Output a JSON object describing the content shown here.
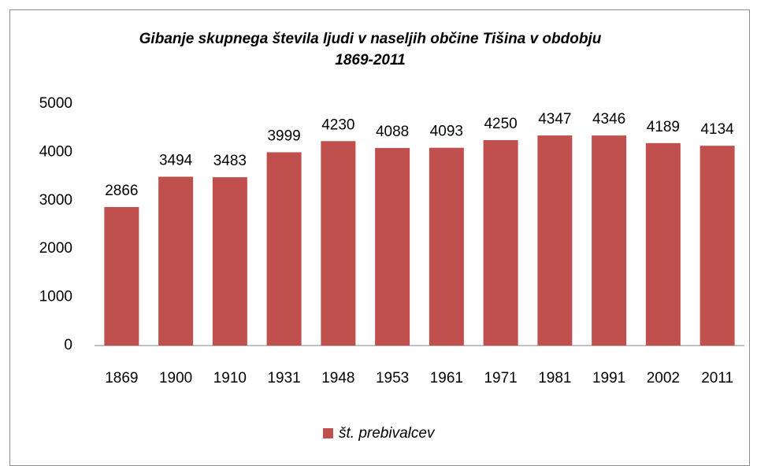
{
  "chart_data": {
    "type": "bar",
    "title": "Gibanje skupnega števila ljudi v naseljih občine Tišina v obdobju 1869-2011",
    "categories": [
      "1869",
      "1900",
      "1910",
      "1931",
      "1948",
      "1953",
      "1961",
      "1971",
      "1981",
      "1991",
      "2002",
      "2011"
    ],
    "series": [
      {
        "name": "št. prebivalcev",
        "color": "#c0504d",
        "values": [
          2866,
          3494,
          3483,
          3999,
          4230,
          4088,
          4093,
          4250,
          4347,
          4346,
          4189,
          4134
        ]
      }
    ],
    "ylim": [
      0,
      5000
    ],
    "yticks": [
      0,
      1000,
      2000,
      3000,
      4000,
      5000
    ],
    "grid": false,
    "legend": "bottom",
    "data_labels": true
  }
}
